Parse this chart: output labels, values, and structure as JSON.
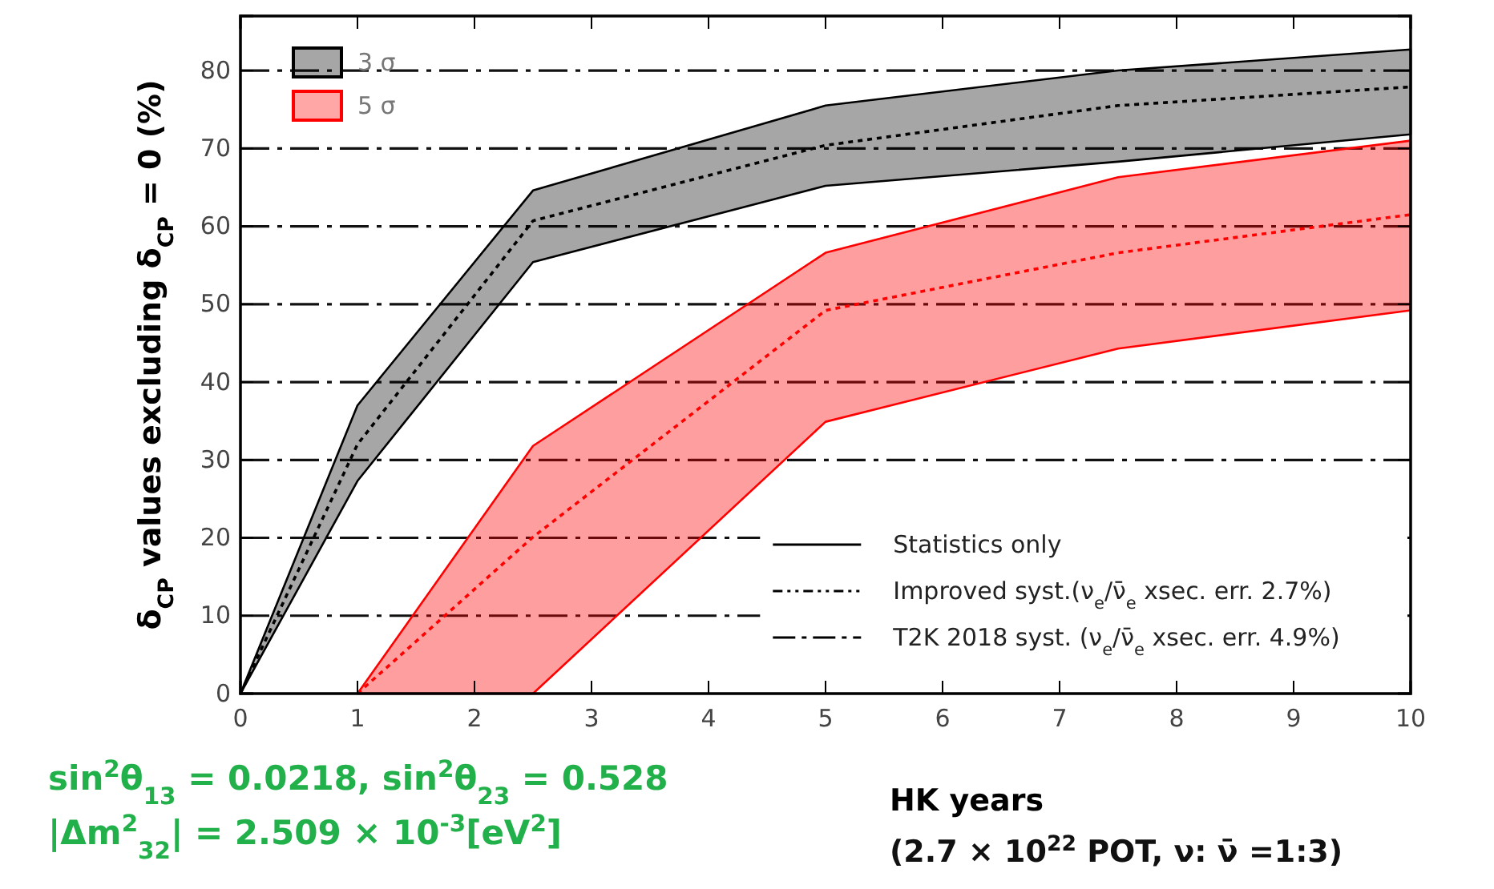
{
  "chart_data": {
    "type": "line",
    "ylabel": "δ$_{CP}$ values excluding δ$_{CP}$ = 0 (%)",
    "xlabel": "HK years",
    "x": [
      0,
      1,
      2.5,
      5,
      7.5,
      10
    ],
    "series": [
      {
        "name": "3 σ",
        "color": "#000000",
        "values": [
          0,
          32,
          60.7,
          70.4,
          75.5,
          77.9
        ],
        "lower": [
          0,
          27.3,
          55.4,
          65.2,
          68.3,
          71.8
        ],
        "upper": [
          0,
          37,
          64.6,
          75.5,
          80,
          82.7
        ]
      },
      {
        "name": "5 σ",
        "color": "#ff0000",
        "values": [
          null,
          0,
          20.1,
          49.2,
          56.6,
          61.5
        ],
        "lower": [
          null,
          0,
          0,
          34.9,
          44.3,
          49.2
        ],
        "upper": [
          null,
          0,
          31.8,
          56.6,
          66.3,
          71
        ]
      }
    ],
    "xlim": [
      0,
      10
    ],
    "xticks": [
      0,
      1,
      2,
      3,
      4,
      5,
      6,
      7,
      8,
      9,
      10
    ],
    "ylim": [
      0,
      87
    ],
    "yticks": [
      0,
      10,
      20,
      30,
      40,
      50,
      60,
      70,
      80
    ],
    "grid": "y",
    "legend": "top left",
    "marker": "none",
    "line_style": "dotted",
    "annotations": [
      "sin$^{2}$θ$_{13}$ = 0.0218, sin$^{2}$θ$_{23}$ = 0.528",
      "|Δm$^{2}$$_{32}$| = 2.509 × 10$^{-3}$[eV$^{2}$]",
      "(2.7 × 10$^{22}$ POT, ν: ν̄ =1:3)",
      "Statistics only",
      "Improved syst.(ν$_{e}$/ν̄$_{e}$ xsec. err. 2.7%)",
      "T2K 2018 syst. (ν$_{e}$/ν̄$_{e}$ xsec. err. 4.9%)"
    ]
  }
}
